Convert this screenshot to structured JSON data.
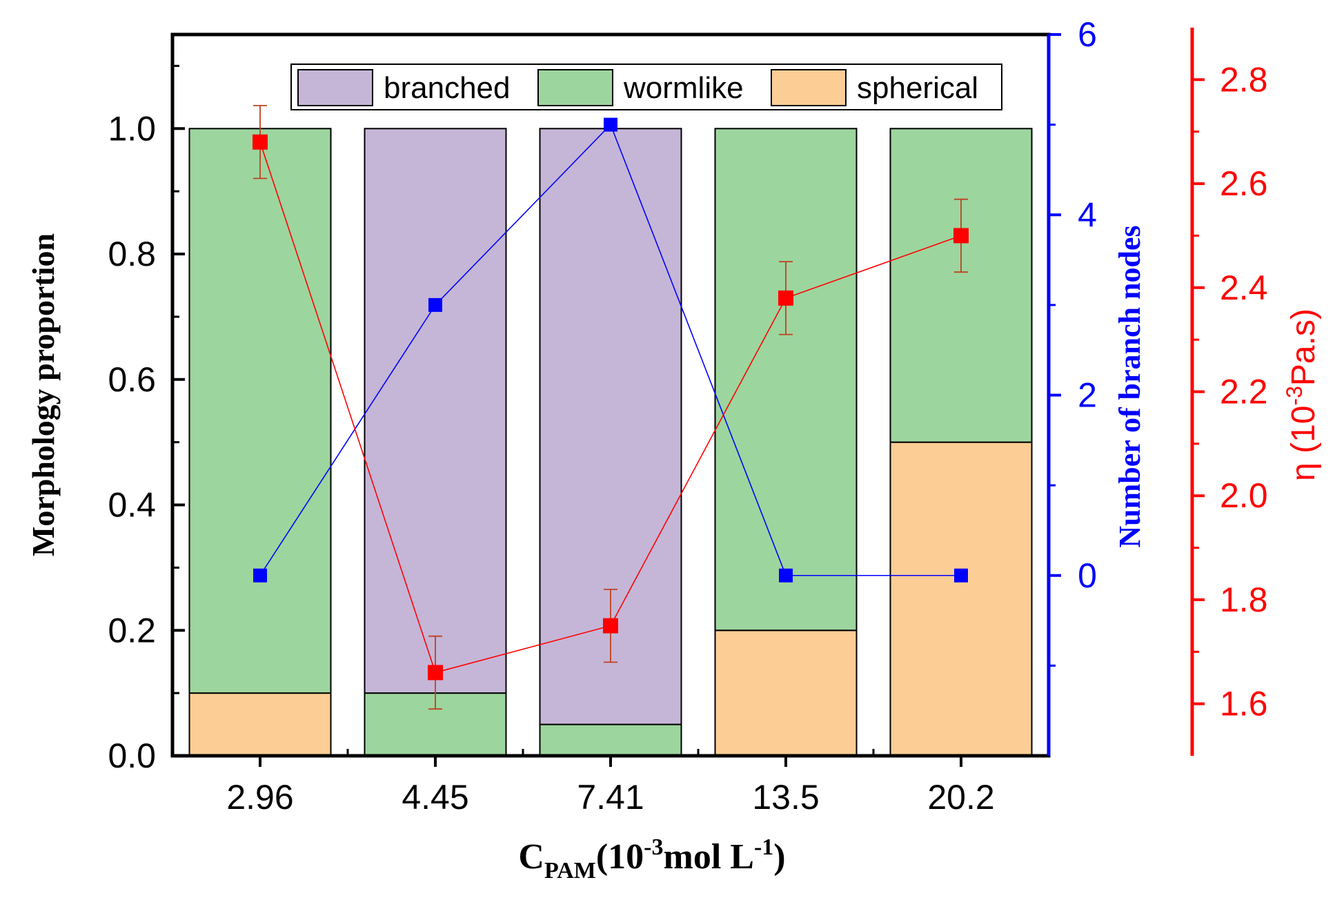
{
  "chart_data": {
    "type": "bar",
    "stacked": true,
    "categories": [
      "2.96",
      "4.45",
      "7.41",
      "13.5",
      "20.2"
    ],
    "series": [
      {
        "name": "spherical",
        "color": "#FCCE96",
        "values": [
          0.1,
          0,
          0,
          0.2,
          0.5
        ]
      },
      {
        "name": "wormlike",
        "color": "#9DD59E",
        "values": [
          0.9,
          0.1,
          0.05,
          0.8,
          0.5
        ]
      },
      {
        "name": "branched",
        "color": "#C5B6D7",
        "values": [
          0,
          0.9,
          0.95,
          0,
          0
        ]
      }
    ],
    "legend_order": [
      "branched",
      "wormlike",
      "spherical"
    ],
    "line_series": [
      {
        "name": "Number of branch nodes",
        "axis": "right1",
        "color": "#0000FF",
        "values": [
          0,
          3,
          5,
          0,
          0
        ]
      },
      {
        "name": "η",
        "axis": "right2",
        "color": "#FF0000",
        "values": [
          2.68,
          1.66,
          1.75,
          2.38,
          2.5
        ],
        "errors": [
          0.07,
          0.07,
          0.07,
          0.07,
          0.07
        ]
      }
    ],
    "left_axis": {
      "label": "Morphology proportion",
      "ylim": [
        0,
        1.15
      ],
      "ticks": [
        "0.0",
        "0.2",
        "0.4",
        "0.6",
        "0.8",
        "1.0"
      ]
    },
    "right_axis_1": {
      "label": "Number of branch nodes",
      "ylim": [
        -2,
        6
      ],
      "ticks": [
        "0",
        "2",
        "4",
        "6"
      ],
      "color": "#0000FF"
    },
    "right_axis_2": {
      "label_main": "η (10",
      "label_sup": "-3",
      "label_tail": "Pa.s)",
      "ylim": [
        1.5,
        2.9
      ],
      "ticks": [
        "1.6",
        "1.8",
        "2.0",
        "2.2",
        "2.4",
        "2.6",
        "2.8"
      ],
      "color": "#FF0000"
    },
    "x_axis": {
      "label_main": "C",
      "label_sub": "PAM",
      "label_mid": "(10",
      "label_sup1": "-3",
      "label_mid2": "mol L",
      "label_sup2": "-1",
      "label_end": ")"
    }
  }
}
